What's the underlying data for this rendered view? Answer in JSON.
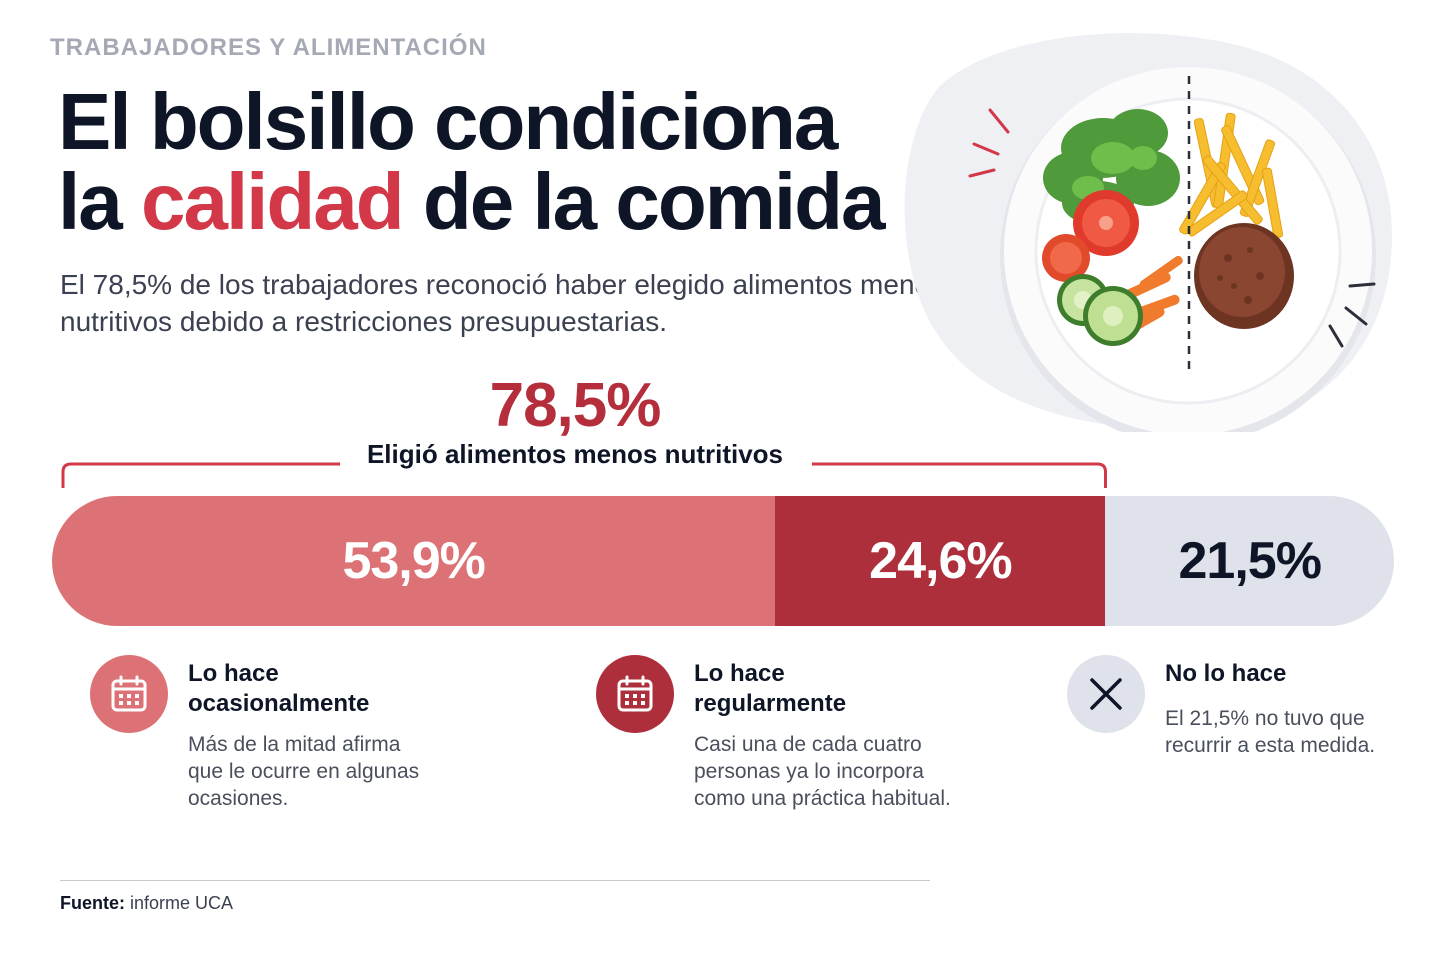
{
  "header": {
    "eyebrow": "TRABAJADORES Y ALIMENTACIÓN",
    "title_line1": "El bolsillo condiciona",
    "title_line2_pre": "la ",
    "title_line2_accent": "calidad",
    "title_line2_post": " de la comida",
    "subtitle": "El 78,5% de los trabajadores reconoció haber elegido alimentos menos nutritivos debido a restricciones presupuestarias."
  },
  "highlight": {
    "value": "78,5%",
    "label": "Eligió alimentos menos nutritivos"
  },
  "chart_data": {
    "type": "bar",
    "orientation": "horizontal-stacked",
    "categories": [
      "Lo hace ocasionalmente",
      "Lo hace regularmente",
      "No lo hace"
    ],
    "values": [
      53.9,
      24.6,
      21.5
    ],
    "value_labels": [
      "53,9%",
      "24,6%",
      "21,5%"
    ],
    "unit": "%",
    "total": 100,
    "grid": false,
    "colors": [
      "#dd7276",
      "#ad2f3b",
      "#dfe2ea"
    ]
  },
  "legend": [
    {
      "title_line1": "Lo hace",
      "title_line2": "ocasionalmente",
      "desc_lines": [
        "Más de la mitad afirma",
        "que le ocurre en algunas",
        "ocasiones."
      ],
      "icon": "calendar-icon",
      "icon_color": "#dd7276"
    },
    {
      "title_line1": "Lo hace",
      "title_line2": "regularmente",
      "desc_lines": [
        "Casi una de cada cuatro",
        "personas ya lo incorpora",
        "como una práctica habitual."
      ],
      "icon": "calendar-icon",
      "icon_color": "#ad2f3b"
    },
    {
      "title_line1": "No lo hace",
      "title_line2": "",
      "desc_lines": [
        "El 21,5% no tuvo que",
        "recurrir a esta medida."
      ],
      "icon": "close-icon",
      "icon_color": "#dfe2ea"
    }
  ],
  "footer": {
    "source_label": "Fuente:",
    "source_text": "informe UCA"
  },
  "illustration": {
    "icon": "plate-illustration",
    "accent_color": "#d23848"
  }
}
